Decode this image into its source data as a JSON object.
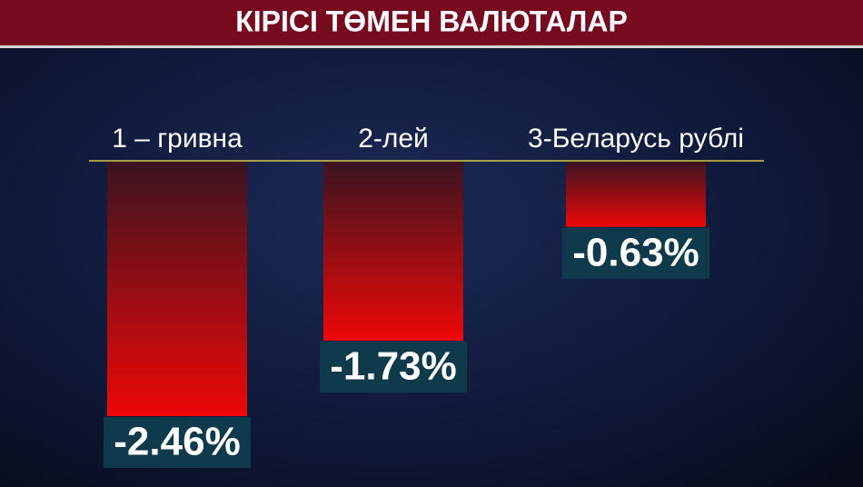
{
  "chart_data": {
    "type": "bar",
    "title": "КІРІСІ ТӨМЕН ВАЛЮТАЛАР",
    "categories": [
      "1 – гривна",
      "2-лей",
      "3-Беларусь рублі"
    ],
    "values": [
      -2.46,
      -1.73,
      -0.63
    ],
    "value_labels": [
      "-2.46%",
      "-1.73%",
      "-0.63%"
    ],
    "color": "#e00a0a"
  }
}
